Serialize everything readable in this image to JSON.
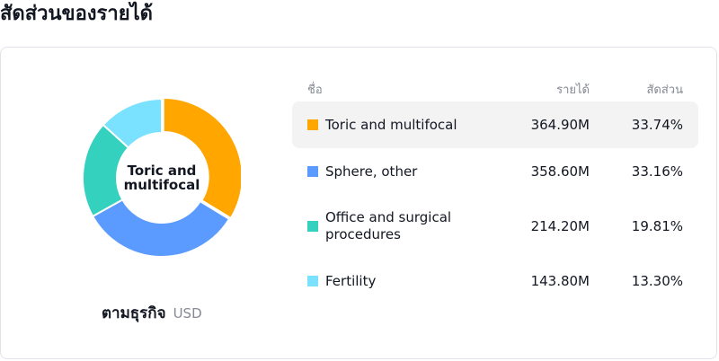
{
  "header": {
    "title": "สัดส่วนของรายได้"
  },
  "donut": {
    "center_label": "Toric and multifocal"
  },
  "footer": {
    "label": "ตามธุรกิจ",
    "unit": "USD"
  },
  "table": {
    "headers": {
      "name": "ชื่อ",
      "revenue": "รายได้",
      "share": "สัดส่วน"
    },
    "highlighted_index": 0
  },
  "chart_data": {
    "type": "pie",
    "title": "สัดส่วนของรายได้",
    "categories": [
      "Toric and multifocal",
      "Sphere, other",
      "Office and surgical procedures",
      "Fertility"
    ],
    "values": [
      364.9,
      358.6,
      214.2,
      143.8
    ],
    "value_labels": [
      "364.90M",
      "358.60M",
      "214.20M",
      "143.80M"
    ],
    "shares": [
      "33.74%",
      "33.16%",
      "19.81%",
      "13.30%"
    ],
    "colors": [
      "#ffa600",
      "#5b9bff",
      "#34d1bf",
      "#7ae1ff"
    ],
    "unit": "USD",
    "legend": "right"
  }
}
